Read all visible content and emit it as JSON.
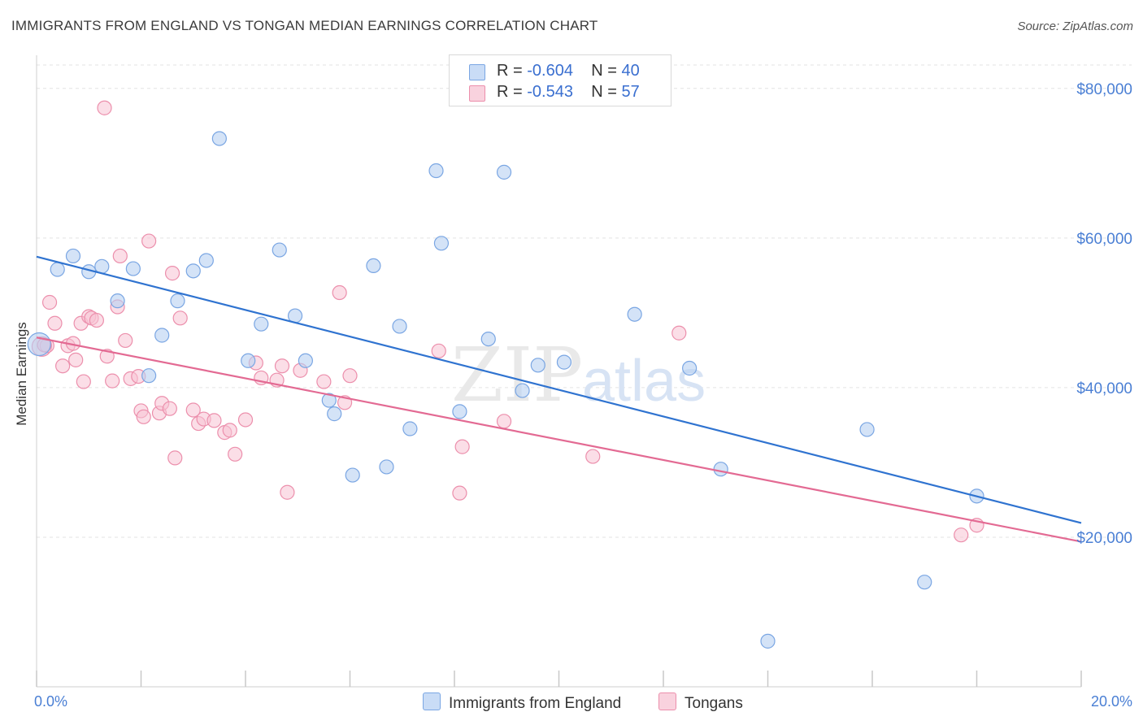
{
  "title": "IMMIGRANTS FROM ENGLAND VS TONGAN MEDIAN EARNINGS CORRELATION CHART",
  "source": "Source: ZipAtlas.com",
  "watermark": {
    "zip": "ZIP",
    "atlas": "atlas"
  },
  "legend": {
    "rows": [
      {
        "r_label": "R =",
        "r_value": "-0.604",
        "n_label": "N =",
        "n_value": "40"
      },
      {
        "r_label": "R =",
        "r_value": "-0.543",
        "n_label": "N =",
        "n_value": "57"
      }
    ]
  },
  "colors": {
    "england_fill": "#b8d0f2",
    "england_stroke": "#7aa6e3",
    "england_line": "#2f73d0",
    "tongan_fill": "#f7c3d3",
    "tongan_stroke": "#ec8fac",
    "tongan_line": "#e36a93",
    "axis_text": "#4a7fd4",
    "grid": "#e3e3e3"
  },
  "chart_data": {
    "type": "scatter",
    "title": "IMMIGRANTS FROM ENGLAND VS TONGAN MEDIAN EARNINGS CORRELATION CHART",
    "xlabel": "",
    "ylabel": "Median Earnings",
    "xlim": [
      0,
      20
    ],
    "ylim": [
      0,
      84000
    ],
    "x_tick_labels": [
      "0.0%",
      "20.0%"
    ],
    "y_ticks": [
      20000,
      40000,
      60000,
      80000
    ],
    "y_tick_labels": [
      "$20,000",
      "$40,000",
      "$60,000",
      "$80,000"
    ],
    "grid": true,
    "legend_position": "top-center",
    "series": [
      {
        "name": "Immigrants from England",
        "points": [
          [
            0.05,
            45800
          ],
          [
            0.4,
            55800
          ],
          [
            0.7,
            57600
          ],
          [
            1.0,
            55500
          ],
          [
            1.25,
            56200
          ],
          [
            1.55,
            51600
          ],
          [
            1.85,
            55900
          ],
          [
            2.15,
            41600
          ],
          [
            2.4,
            47000
          ],
          [
            2.7,
            51600
          ],
          [
            3.0,
            55600
          ],
          [
            3.25,
            57000
          ],
          [
            3.5,
            73300
          ],
          [
            4.05,
            43600
          ],
          [
            4.3,
            48500
          ],
          [
            4.65,
            58400
          ],
          [
            4.95,
            49600
          ],
          [
            5.15,
            43600
          ],
          [
            5.6,
            38300
          ],
          [
            5.7,
            36500
          ],
          [
            6.05,
            28300
          ],
          [
            6.45,
            56300
          ],
          [
            6.7,
            29400
          ],
          [
            6.95,
            48200
          ],
          [
            7.15,
            34500
          ],
          [
            7.65,
            69000
          ],
          [
            7.75,
            59300
          ],
          [
            8.1,
            36800
          ],
          [
            8.65,
            46500
          ],
          [
            8.95,
            68800
          ],
          [
            9.3,
            39600
          ],
          [
            9.6,
            43000
          ],
          [
            10.1,
            43400
          ],
          [
            11.45,
            49800
          ],
          [
            12.5,
            42600
          ],
          [
            13.1,
            29100
          ],
          [
            14.0,
            6100
          ],
          [
            15.9,
            34400
          ],
          [
            17.0,
            14000
          ],
          [
            18.0,
            25500
          ]
        ],
        "trend": {
          "x": [
            0,
            20
          ],
          "y": [
            57500,
            21900
          ]
        }
      },
      {
        "name": "Tongans",
        "points": [
          [
            0.1,
            45500
          ],
          [
            0.2,
            45600
          ],
          [
            0.25,
            51400
          ],
          [
            0.35,
            48600
          ],
          [
            0.5,
            42900
          ],
          [
            0.6,
            45600
          ],
          [
            0.7,
            45900
          ],
          [
            0.75,
            43700
          ],
          [
            0.85,
            48600
          ],
          [
            0.9,
            40800
          ],
          [
            1.0,
            49500
          ],
          [
            1.05,
            49300
          ],
          [
            1.15,
            49000
          ],
          [
            1.3,
            77400
          ],
          [
            1.35,
            44200
          ],
          [
            1.45,
            40900
          ],
          [
            1.55,
            50800
          ],
          [
            1.6,
            57600
          ],
          [
            1.7,
            46300
          ],
          [
            1.8,
            41200
          ],
          [
            1.95,
            41500
          ],
          [
            2.0,
            36900
          ],
          [
            2.05,
            36100
          ],
          [
            2.15,
            59600
          ],
          [
            2.35,
            36600
          ],
          [
            2.4,
            37900
          ],
          [
            2.55,
            37200
          ],
          [
            2.6,
            55300
          ],
          [
            2.65,
            30600
          ],
          [
            2.75,
            49300
          ],
          [
            3.0,
            37000
          ],
          [
            3.1,
            35200
          ],
          [
            3.2,
            35800
          ],
          [
            3.4,
            35600
          ],
          [
            3.6,
            34000
          ],
          [
            3.7,
            34300
          ],
          [
            3.8,
            31100
          ],
          [
            4.0,
            35700
          ],
          [
            4.2,
            43300
          ],
          [
            4.3,
            41300
          ],
          [
            4.6,
            41000
          ],
          [
            4.7,
            42900
          ],
          [
            4.8,
            26000
          ],
          [
            5.05,
            42300
          ],
          [
            5.5,
            40800
          ],
          [
            5.8,
            52700
          ],
          [
            5.9,
            38000
          ],
          [
            6.0,
            41600
          ],
          [
            7.7,
            44900
          ],
          [
            8.1,
            25900
          ],
          [
            8.15,
            32100
          ],
          [
            8.95,
            35500
          ],
          [
            10.65,
            30800
          ],
          [
            12.3,
            47300
          ],
          [
            17.7,
            20300
          ],
          [
            18.0,
            21600
          ],
          [
            0.15,
            45700
          ]
        ],
        "trend": {
          "x": [
            0,
            20
          ],
          "y": [
            46700,
            19400
          ]
        }
      }
    ]
  }
}
